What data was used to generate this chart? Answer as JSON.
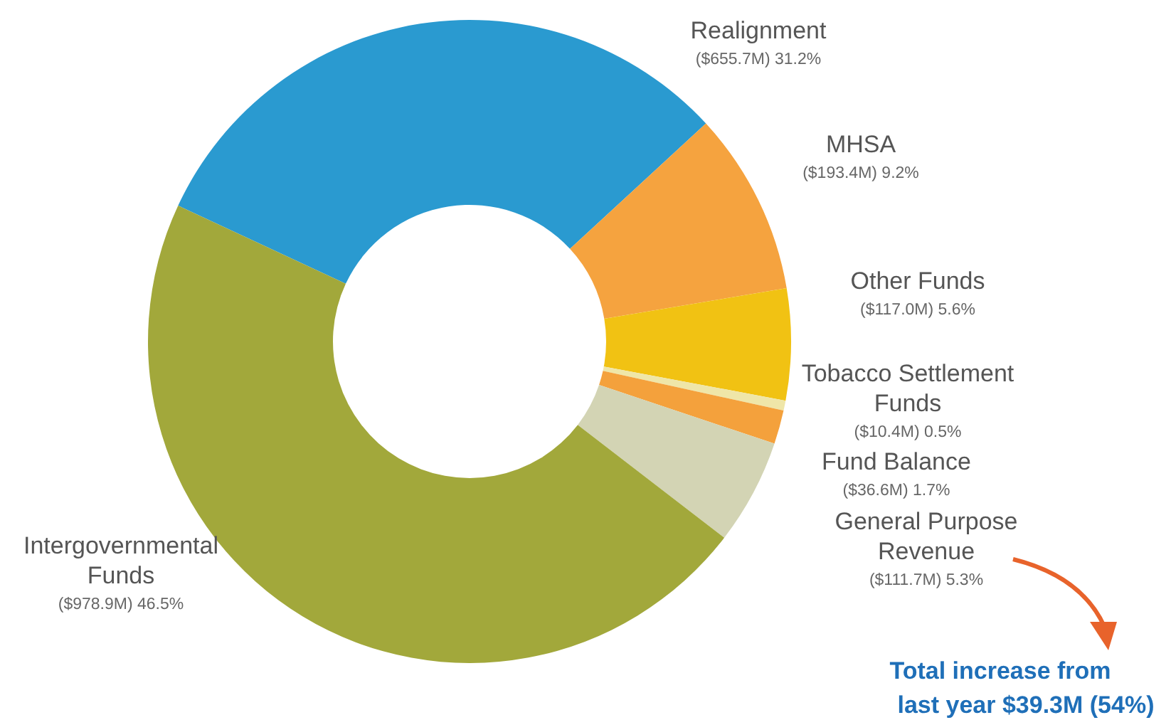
{
  "chart_data": {
    "type": "donut",
    "categories": [
      "Realignment",
      "MHSA",
      "Other Funds",
      "Tobacco Settlement Funds",
      "Fund Balance",
      "General Purpose Revenue",
      "Intergovernmental Funds"
    ],
    "values": [
      31.2,
      9.2,
      5.6,
      0.5,
      1.7,
      5.3,
      46.5
    ],
    "value_labels": [
      "($655.7M) 31.2%",
      "($193.4M) 9.2%",
      "($117.0M) 5.6%",
      "($10.4M) 0.5%",
      "($36.6M) 1.7%",
      "($111.7M) 5.3%",
      "($978.9M) 46.5%"
    ],
    "colors": [
      "#2a9ad0",
      "#f5a33f",
      "#f1c213",
      "#efe6a8",
      "#f4a13c",
      "#d3d4b4",
      "#a2a83b"
    ],
    "annotations": [
      "Total increase from last year $39.3M (54%)"
    ]
  }
}
